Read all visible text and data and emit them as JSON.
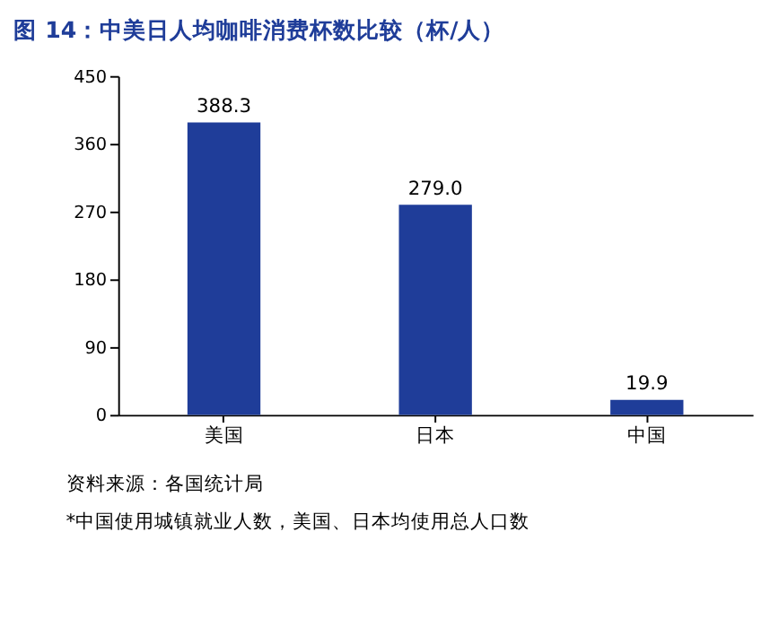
{
  "chart_data": {
    "type": "bar",
    "title": "图 14：中美日人均咖啡消费杯数比较（杯/人）",
    "categories": [
      "美国",
      "日本",
      "中国"
    ],
    "values": [
      388.3,
      279.0,
      19.9
    ],
    "value_labels": [
      "388.3",
      "279.0",
      "19.9"
    ],
    "color": "#1f3d99",
    "ylim": [
      0,
      450
    ],
    "yticks": [
      0,
      90,
      180,
      270,
      360,
      450
    ],
    "grid": false,
    "annotations": [
      "资料来源：各国统计局",
      "*中国使用城镇就业人数，美国、日本均使用总人口数"
    ]
  }
}
